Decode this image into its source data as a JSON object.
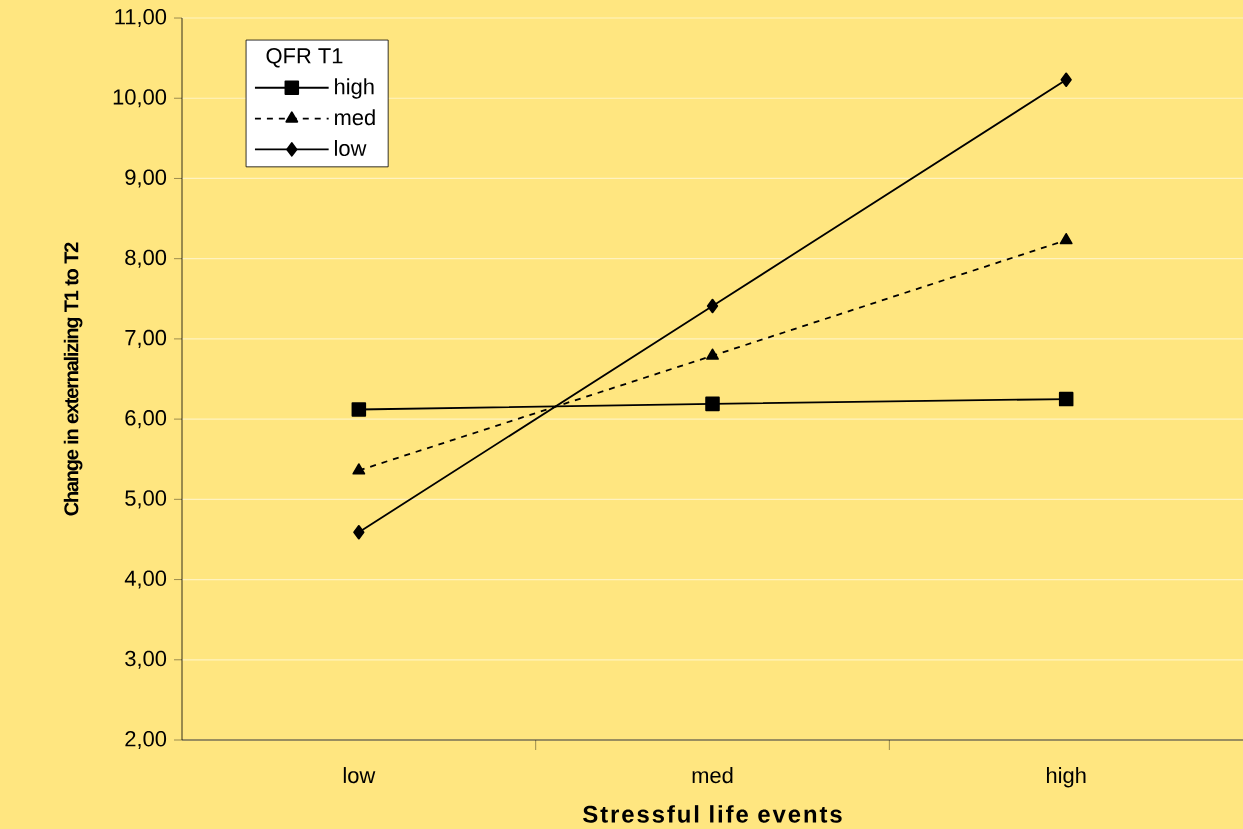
{
  "chart_data": {
    "type": "line",
    "xlabel": "Stressful life events",
    "ylabel": "Change in externalizing T1 to T2",
    "legend_title": "QFR T1",
    "categories": [
      "low",
      "med",
      "high"
    ],
    "series": [
      {
        "name": "high",
        "color": "#000000",
        "values": [
          6.12,
          6.19,
          6.25
        ],
        "marker": "square",
        "line_style": "solid"
      },
      {
        "name": "med",
        "color": "#000000",
        "values": [
          5.36,
          6.79,
          8.23
        ],
        "marker": "triangle",
        "line_style": "dashed"
      },
      {
        "name": "low",
        "color": "#000000",
        "values": [
          4.59,
          7.41,
          10.23
        ],
        "marker": "diamond",
        "line_style": "solid"
      }
    ],
    "ylim": [
      2,
      11
    ],
    "yticks": [
      {
        "value": 2,
        "label": "2,00"
      },
      {
        "value": 3,
        "label": "3,00"
      },
      {
        "value": 4,
        "label": "4,00"
      },
      {
        "value": 5,
        "label": "5,00"
      },
      {
        "value": 6,
        "label": "6,00"
      },
      {
        "value": 7,
        "label": "7,00"
      },
      {
        "value": 8,
        "label": "8,00"
      },
      {
        "value": 9,
        "label": "9,00"
      },
      {
        "value": 10,
        "label": "10,00"
      },
      {
        "value": 11,
        "label": "11,00"
      }
    ],
    "grid": "y",
    "legend": "top left"
  }
}
